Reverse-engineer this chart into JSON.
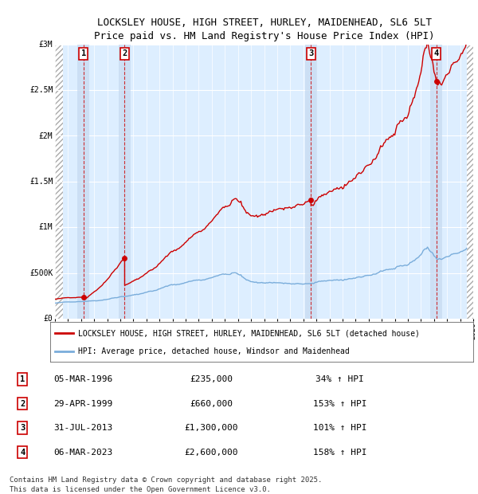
{
  "title": "LOCKSLEY HOUSE, HIGH STREET, HURLEY, MAIDENHEAD, SL6 5LT",
  "subtitle": "Price paid vs. HM Land Registry's House Price Index (HPI)",
  "xlim": [
    1994.0,
    2026.0
  ],
  "ylim": [
    0,
    3000000
  ],
  "yticks": [
    0,
    500000,
    1000000,
    1500000,
    2000000,
    2500000,
    3000000
  ],
  "ytick_labels": [
    "£0",
    "£500K",
    "£1M",
    "£1.5M",
    "£2M",
    "£2.5M",
    "£3M"
  ],
  "xtick_years": [
    1994,
    1995,
    1996,
    1997,
    1998,
    1999,
    2000,
    2001,
    2002,
    2003,
    2004,
    2005,
    2006,
    2007,
    2008,
    2009,
    2010,
    2011,
    2012,
    2013,
    2014,
    2015,
    2016,
    2017,
    2018,
    2019,
    2020,
    2021,
    2022,
    2023,
    2024,
    2025,
    2026
  ],
  "sale_dates": [
    1996.18,
    1999.33,
    2013.58,
    2023.18
  ],
  "sale_prices": [
    235000,
    660000,
    1300000,
    2600000
  ],
  "sale_labels": [
    "1",
    "2",
    "3",
    "4"
  ],
  "sale_hpi_pct": [
    "34% ↑ HPI",
    "153% ↑ HPI",
    "101% ↑ HPI",
    "158% ↑ HPI"
  ],
  "sale_date_labels": [
    "05-MAR-1996",
    "29-APR-1999",
    "31-JUL-2013",
    "06-MAR-2023"
  ],
  "sale_price_labels": [
    "£235,000",
    "£660,000",
    "£1,300,000",
    "£2,600,000"
  ],
  "hpi_line_color": "#7aaddb",
  "sale_line_color": "#cc0000",
  "dot_color": "#cc0000",
  "hpi_color_fill": "#cce0f0",
  "bg_hatch_color": "#cccccc",
  "bg_plot_color": "#ddeeff",
  "col_highlight_color": "#c5d9f0",
  "hatch_left_end": 1994.58,
  "hatch_right_start": 2025.5,
  "legend_label_red": "LOCKSLEY HOUSE, HIGH STREET, HURLEY, MAIDENHEAD, SL6 5LT (detached house)",
  "legend_label_blue": "HPI: Average price, detached house, Windsor and Maidenhead",
  "footer": "Contains HM Land Registry data © Crown copyright and database right 2025.\nThis data is licensed under the Open Government Licence v3.0.",
  "title_fontsize": 9,
  "axis_fontsize": 7,
  "legend_fontsize": 7,
  "footer_fontsize": 6.5
}
